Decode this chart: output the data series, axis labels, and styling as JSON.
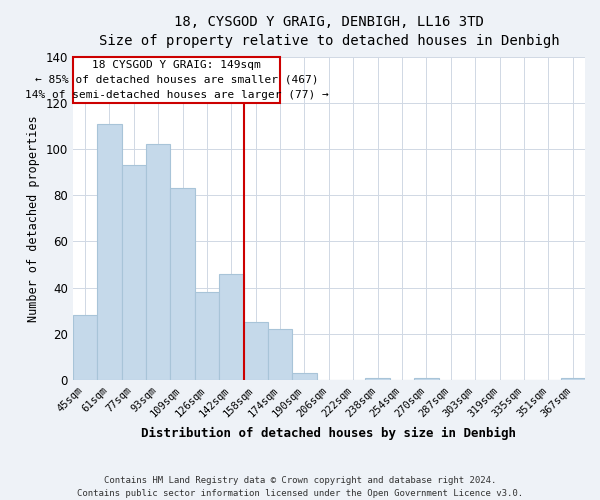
{
  "title": "18, CYSGOD Y GRAIG, DENBIGH, LL16 3TD",
  "subtitle": "Size of property relative to detached houses in Denbigh",
  "xlabel": "Distribution of detached houses by size in Denbigh",
  "ylabel": "Number of detached properties",
  "bar_labels": [
    "45sqm",
    "61sqm",
    "77sqm",
    "93sqm",
    "109sqm",
    "126sqm",
    "142sqm",
    "158sqm",
    "174sqm",
    "190sqm",
    "206sqm",
    "222sqm",
    "238sqm",
    "254sqm",
    "270sqm",
    "287sqm",
    "303sqm",
    "319sqm",
    "335sqm",
    "351sqm",
    "367sqm"
  ],
  "bar_values": [
    28,
    111,
    93,
    102,
    83,
    38,
    46,
    25,
    22,
    3,
    0,
    0,
    1,
    0,
    1,
    0,
    0,
    0,
    0,
    0,
    1
  ],
  "bar_color": "#c5d9ea",
  "bar_edge_color": "#a8c4d8",
  "ylim": [
    0,
    140
  ],
  "yticks": [
    0,
    20,
    40,
    60,
    80,
    100,
    120,
    140
  ],
  "vline_index": 7,
  "property_line_label": "18 CYSGOD Y GRAIG: 149sqm",
  "annotation_line1": "← 85% of detached houses are smaller (467)",
  "annotation_line2": "14% of semi-detached houses are larger (77) →",
  "annotation_box_color": "#ffffff",
  "annotation_box_edge": "#cc0000",
  "vline_color": "#cc0000",
  "footer_line1": "Contains HM Land Registry data © Crown copyright and database right 2024.",
  "footer_line2": "Contains public sector information licensed under the Open Government Licence v3.0.",
  "bg_color": "#eef2f7",
  "plot_bg_color": "#ffffff",
  "grid_color": "#d0d8e4"
}
